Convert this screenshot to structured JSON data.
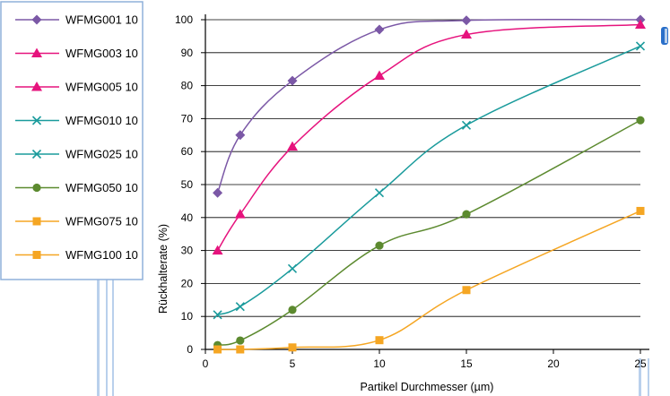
{
  "chart_data": {
    "type": "line",
    "xlabel": "Partikel Durchmesser (µm)",
    "ylabel": "Rückhalterate (%)",
    "xlim": [
      0,
      25
    ],
    "ylim": [
      0,
      100
    ],
    "xticks": [
      "0",
      "5",
      "10",
      "15",
      "20",
      "25"
    ],
    "yticks": [
      "0",
      "10",
      "20",
      "30",
      "40",
      "50",
      "60",
      "70",
      "80",
      "90",
      "100"
    ],
    "grid": "horizontal",
    "legend_position": "left",
    "series": [
      {
        "name": "WFMG001 10",
        "color": "#7B58A6",
        "marker": "diamond",
        "x": [
          0.7,
          2,
          5,
          10,
          15,
          25
        ],
        "y": [
          47.5,
          65,
          81.5,
          97,
          99.8,
          100
        ]
      },
      {
        "name": "WFMG003 10",
        "color": "#E6137D",
        "marker": "triangle",
        "x": [
          0.7,
          2,
          5,
          10,
          15,
          25
        ],
        "y": [
          30,
          41,
          61.5,
          83,
          95.5,
          98.5
        ]
      },
      {
        "name": "WFMG005 10",
        "color": "#E6137D",
        "marker": "triangle",
        "x": [],
        "y": []
      },
      {
        "name": "WFMG010 10",
        "color": "#1A9B9C",
        "marker": "x",
        "x": [
          0.7,
          2,
          5,
          10,
          15,
          25
        ],
        "y": [
          10.5,
          13,
          24.5,
          47.5,
          68,
          92
        ]
      },
      {
        "name": "WFMG025 10",
        "color": "#1A9B9C",
        "marker": "x",
        "x": [],
        "y": []
      },
      {
        "name": "WFMG050 10",
        "color": "#5C8A2F",
        "marker": "circle",
        "x": [
          0.7,
          2,
          5,
          10,
          15,
          25
        ],
        "y": [
          1.3,
          2.7,
          12,
          31.5,
          41,
          69.5
        ]
      },
      {
        "name": "WFMG075 10",
        "color": "#F5A623",
        "marker": "square",
        "x": [
          0.7,
          2,
          5,
          10,
          15,
          25
        ],
        "y": [
          0,
          0,
          0.6,
          2.8,
          18,
          42
        ]
      },
      {
        "name": "WFMG100 10",
        "color": "#F5A623",
        "marker": "square",
        "x": [],
        "y": []
      }
    ]
  }
}
